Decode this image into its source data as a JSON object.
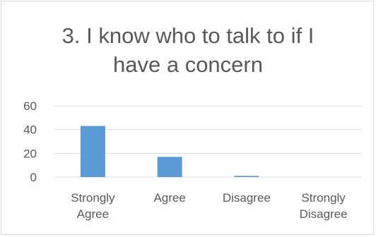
{
  "chart_data": {
    "type": "bar",
    "title_lines": [
      "3. I know who to talk to if I",
      "have a concern"
    ],
    "categories": [
      [
        "Strongly",
        "Agree"
      ],
      [
        "Agree"
      ],
      [
        "Disagree"
      ],
      [
        "Strongly",
        "Disagree"
      ]
    ],
    "values": [
      43,
      17,
      1,
      0
    ],
    "ylim": [
      0,
      60
    ],
    "yticks": [
      0,
      20,
      40,
      60
    ],
    "grid": true,
    "colors": {
      "bar": "#5b9bd5",
      "grid": "#d9d9d9",
      "axis": "#d9d9d9",
      "text": "#595959"
    }
  }
}
